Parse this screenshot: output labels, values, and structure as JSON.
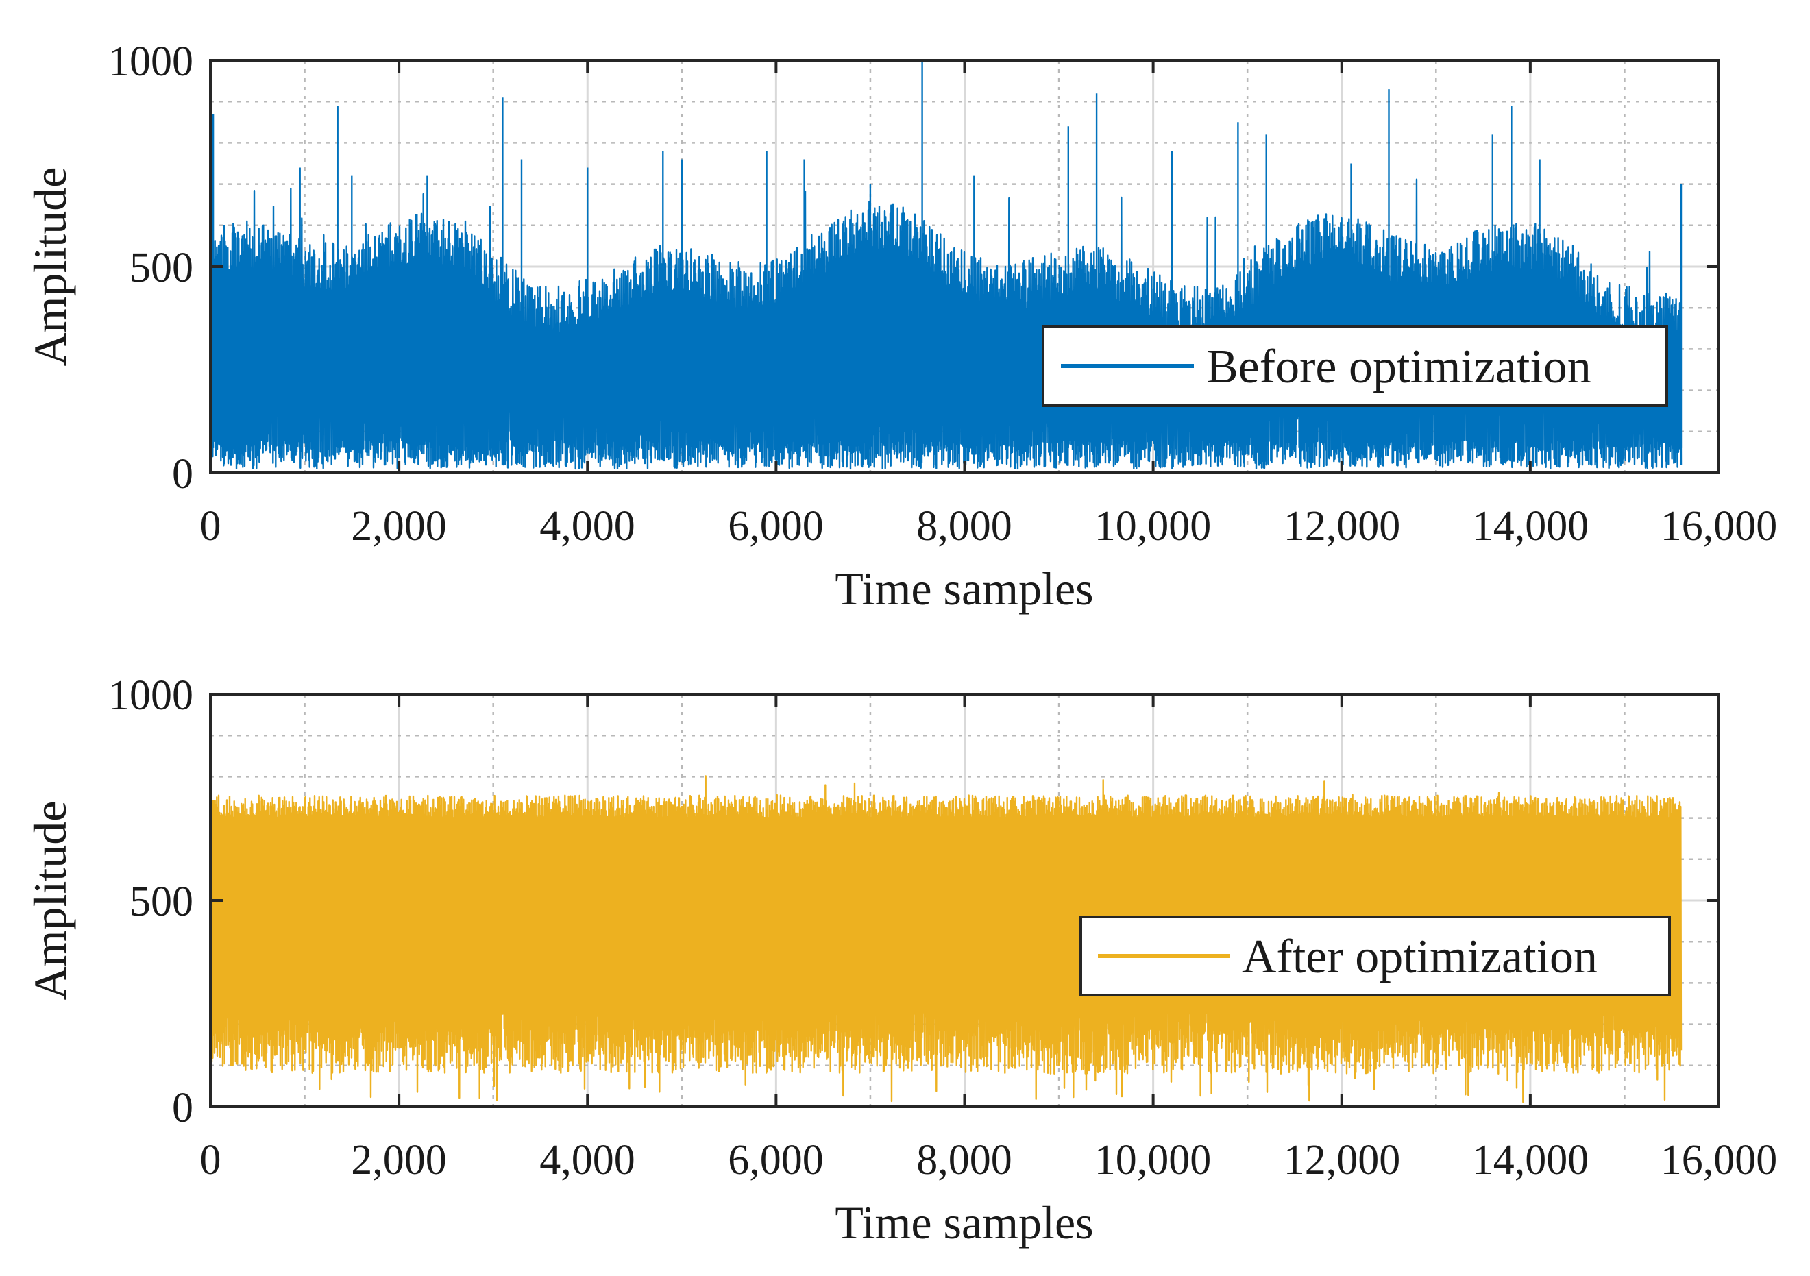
{
  "chart_data": [
    {
      "type": "line",
      "xlabel": "Time samples",
      "ylabel": "Amplitude",
      "xlim": [
        0,
        16000
      ],
      "ylim": [
        0,
        1000
      ],
      "x_ticks": [
        "0",
        "2,000",
        "4,000",
        "6,000",
        "8,000",
        "10,000",
        "12,000",
        "14,000",
        "16,000"
      ],
      "y_ticks": [
        "0",
        "500",
        "1000"
      ],
      "grid": true,
      "legend_position": "lower-right",
      "series": [
        {
          "name": "Before optimization",
          "color": "#0072BD",
          "x_range": [
            0,
            15600
          ],
          "baseline_max": 500,
          "peaks": [
            {
              "x": 30,
              "y": 870
            },
            {
              "x": 300,
              "y": 570
            },
            {
              "x": 950,
              "y": 740
            },
            {
              "x": 1350,
              "y": 890
            },
            {
              "x": 1500,
              "y": 720
            },
            {
              "x": 2300,
              "y": 720
            },
            {
              "x": 3100,
              "y": 910
            },
            {
              "x": 3300,
              "y": 760
            },
            {
              "x": 4000,
              "y": 740
            },
            {
              "x": 4800,
              "y": 780
            },
            {
              "x": 5000,
              "y": 760
            },
            {
              "x": 5900,
              "y": 780
            },
            {
              "x": 6300,
              "y": 760
            },
            {
              "x": 7000,
              "y": 700
            },
            {
              "x": 7550,
              "y": 1000
            },
            {
              "x": 8100,
              "y": 720
            },
            {
              "x": 9400,
              "y": 920
            },
            {
              "x": 9100,
              "y": 840
            },
            {
              "x": 10200,
              "y": 780
            },
            {
              "x": 10900,
              "y": 850
            },
            {
              "x": 11200,
              "y": 820
            },
            {
              "x": 12500,
              "y": 930
            },
            {
              "x": 12100,
              "y": 750
            },
            {
              "x": 13600,
              "y": 820
            },
            {
              "x": 13800,
              "y": 890
            },
            {
              "x": 14100,
              "y": 760
            },
            {
              "x": 15600,
              "y": 700
            }
          ]
        }
      ]
    },
    {
      "type": "line",
      "xlabel": "Time samples",
      "ylabel": "Amplitude",
      "xlim": [
        0,
        16000
      ],
      "ylim": [
        0,
        1000
      ],
      "x_ticks": [
        "0",
        "2,000",
        "4,000",
        "6,000",
        "8,000",
        "10,000",
        "12,000",
        "14,000",
        "16,000"
      ],
      "y_ticks": [
        "0",
        "500",
        "1000"
      ],
      "grid": true,
      "legend_position": "lower-right",
      "series": [
        {
          "name": "After optimization",
          "color": "#EDB120",
          "x_range": [
            0,
            15600
          ],
          "upper_band": [
            690,
            810
          ],
          "lower_band": [
            10,
            230
          ]
        }
      ]
    }
  ]
}
